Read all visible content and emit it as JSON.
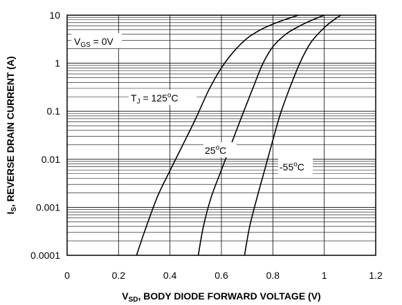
{
  "chart_data": {
    "type": "line",
    "x_axis": {
      "label_main": "V",
      "label_sub": "SD",
      "label_rest": ", BODY DIODE FORWARD VOLTAGE (V)",
      "range": [
        0,
        1.2
      ],
      "ticks": [
        0,
        0.2,
        0.4,
        0.6,
        0.8,
        1,
        1.2
      ],
      "tick_labels": [
        "0",
        "0.2",
        "0.4",
        "0.6",
        "0.8",
        "1",
        "1.2"
      ]
    },
    "y_axis": {
      "label_main": "I",
      "label_sub": "S",
      "label_rest": ", REVERSE DRAIN CURRENT (A)",
      "scale": "log",
      "range": [
        0.0001,
        10
      ],
      "ticks": [
        0.0001,
        0.001,
        0.01,
        0.1,
        1,
        10
      ],
      "tick_labels": [
        "0.0001",
        "0.001",
        "0.01",
        "0.1",
        "1",
        "10"
      ]
    },
    "grid": true,
    "condition": {
      "main": "V",
      "sub": "GS",
      "rest": " = 0V"
    },
    "series": [
      {
        "name_main": "T",
        "name_sub": "J",
        "name_rest": " = 125",
        "name_sup": "o",
        "name_end": "C",
        "x": [
          0.27,
          0.3,
          0.35,
          0.4,
          0.45,
          0.5,
          0.55,
          0.6,
          0.65,
          0.7,
          0.75,
          0.8,
          0.85,
          0.9
        ],
        "y": [
          0.0001,
          0.0003,
          0.0016,
          0.0058,
          0.02,
          0.07,
          0.27,
          0.8,
          1.8,
          3.3,
          4.9,
          6.5,
          8.2,
          10
        ]
      },
      {
        "name_main": "",
        "name_sub": "",
        "name_rest": "25",
        "name_sup": "o",
        "name_end": "C",
        "x": [
          0.51,
          0.53,
          0.56,
          0.6,
          0.64,
          0.68,
          0.72,
          0.76,
          0.8,
          0.85,
          0.9,
          0.95,
          1.0
        ],
        "y": [
          0.0001,
          0.0004,
          0.0016,
          0.006,
          0.022,
          0.08,
          0.28,
          0.95,
          2.2,
          4.0,
          5.8,
          7.8,
          10
        ]
      },
      {
        "name_main": "",
        "name_sub": "",
        "name_rest": "-55",
        "name_sup": "o",
        "name_end": "C",
        "x": [
          0.69,
          0.71,
          0.74,
          0.77,
          0.8,
          0.83,
          0.87,
          0.91,
          0.95,
          1.0,
          1.04,
          1.065
        ],
        "y": [
          0.0001,
          0.0004,
          0.0017,
          0.0065,
          0.025,
          0.09,
          0.35,
          1.15,
          2.8,
          5.5,
          8.2,
          10
        ]
      }
    ]
  }
}
